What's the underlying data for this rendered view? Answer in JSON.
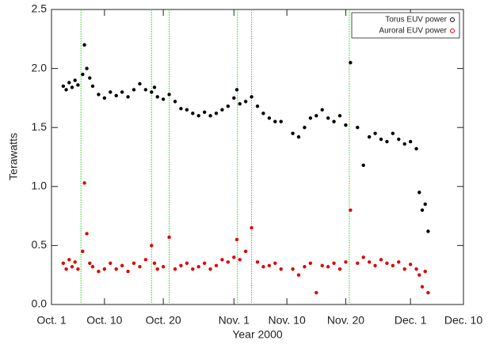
{
  "chart_data": {
    "type": "scatter",
    "x_label": "Year 2000",
    "y_label": "Terawatts",
    "x": [
      3,
      3.5,
      4,
      4.5,
      5,
      5.5,
      6.3,
      6.6,
      7,
      7.5,
      8,
      9,
      10,
      11,
      12,
      13,
      14,
      15,
      16,
      17,
      18,
      18.5,
      19,
      20,
      21,
      22,
      23,
      24,
      25,
      26,
      27,
      28,
      29,
      30,
      31,
      32,
      32.5,
      33,
      34,
      35,
      36,
      37,
      38,
      39,
      40,
      42,
      43,
      44,
      45,
      46,
      47,
      48,
      49,
      50,
      51,
      51.8,
      53,
      54,
      55,
      56,
      57,
      58,
      59,
      60,
      61,
      62,
      63,
      63.5,
      64,
      64.5,
      65
    ],
    "series": [
      {
        "name": "Torus EUV power",
        "color": "#000000",
        "values": [
          1.85,
          1.82,
          1.88,
          1.84,
          1.9,
          1.86,
          1.95,
          2.2,
          2.0,
          1.92,
          1.85,
          1.78,
          1.75,
          1.8,
          1.77,
          1.8,
          1.76,
          1.82,
          1.87,
          1.82,
          1.8,
          1.84,
          1.76,
          1.74,
          1.78,
          1.72,
          1.66,
          1.65,
          1.62,
          1.6,
          1.63,
          1.6,
          1.62,
          1.65,
          1.68,
          1.75,
          1.82,
          1.7,
          1.72,
          1.76,
          1.68,
          1.62,
          1.58,
          1.55,
          1.55,
          1.45,
          1.42,
          1.5,
          1.58,
          1.6,
          1.65,
          1.58,
          1.55,
          1.6,
          1.52,
          2.05,
          1.5,
          1.18,
          1.42,
          1.45,
          1.4,
          1.38,
          1.45,
          1.4,
          1.36,
          1.38,
          1.32,
          0.95,
          0.8,
          0.85,
          0.62
        ]
      },
      {
        "name": "Auroral EUV power",
        "color": "#e00000",
        "values": [
          0.35,
          0.3,
          0.38,
          0.32,
          0.36,
          0.3,
          0.45,
          1.03,
          0.6,
          0.35,
          0.32,
          0.28,
          0.3,
          0.35,
          0.3,
          0.33,
          0.28,
          0.35,
          0.32,
          0.38,
          0.5,
          0.35,
          0.3,
          0.32,
          0.57,
          0.3,
          0.33,
          0.35,
          0.3,
          0.32,
          0.35,
          0.3,
          0.33,
          0.38,
          0.36,
          0.4,
          0.55,
          0.38,
          0.45,
          0.65,
          0.36,
          0.32,
          0.33,
          0.35,
          0.3,
          0.3,
          0.25,
          0.32,
          0.35,
          0.1,
          0.33,
          0.32,
          0.35,
          0.3,
          0.36,
          0.8,
          0.35,
          0.4,
          0.36,
          0.33,
          0.38,
          0.35,
          0.33,
          0.36,
          0.3,
          0.34,
          0.3,
          0.25,
          0.15,
          0.28,
          0.1
        ]
      }
    ],
    "xlim": [
      1,
      71
    ],
    "xticks": [
      {
        "value": 1,
        "label": "Oct. 1"
      },
      {
        "value": 10,
        "label": "Oct. 10"
      },
      {
        "value": 20,
        "label": "Oct. 20"
      },
      {
        "value": 32,
        "label": "Nov. 1"
      },
      {
        "value": 41,
        "label": "Nov. 10"
      },
      {
        "value": 51,
        "label": "Nov. 20"
      },
      {
        "value": 62,
        "label": "Dec. 1"
      },
      {
        "value": 71,
        "label": "Dec. 10"
      }
    ],
    "ylim": [
      0,
      2.5
    ],
    "yticks": [
      {
        "value": 0,
        "label": "0.0"
      },
      {
        "value": 0.5,
        "label": "0.5"
      },
      {
        "value": 1,
        "label": "1.0"
      },
      {
        "value": 1.5,
        "label": "1.5"
      },
      {
        "value": 2,
        "label": "2.0"
      },
      {
        "value": 2.5,
        "label": "2.5"
      }
    ],
    "vlines": [
      6,
      18,
      21,
      32.6,
      35,
      51.6
    ],
    "vline_color": "#55dd55",
    "legend": "upper right"
  }
}
